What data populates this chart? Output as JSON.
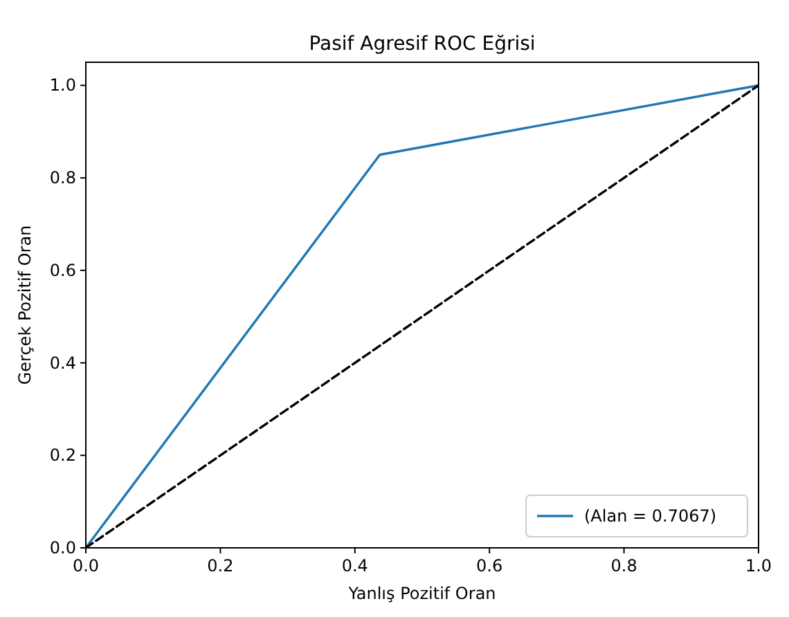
{
  "chart_data": {
    "type": "line",
    "title": "Pasif Agresif ROC Eğrisi",
    "xlabel": "Yanlış Pozitif Oran",
    "ylabel": "Gerçek Pozitif Oran",
    "xlim": [
      0,
      1
    ],
    "ylim": [
      0,
      1.05
    ],
    "xticks": [
      {
        "value": 0,
        "label": "0.0"
      },
      {
        "value": 0.2,
        "label": "0.2"
      },
      {
        "value": 0.4,
        "label": "0.4"
      },
      {
        "value": 0.6,
        "label": "0.6"
      },
      {
        "value": 0.8,
        "label": "0.8"
      },
      {
        "value": 1,
        "label": "1.0"
      }
    ],
    "yticks": [
      {
        "value": 0,
        "label": "0.0"
      },
      {
        "value": 0.2,
        "label": "0.2"
      },
      {
        "value": 0.4,
        "label": "0.4"
      },
      {
        "value": 0.6,
        "label": "0.6"
      },
      {
        "value": 0.8,
        "label": "0.8"
      },
      {
        "value": 1,
        "label": "1.0"
      }
    ],
    "series": [
      {
        "name": "(Alan = 0.7067)",
        "color": "#1f77b4",
        "x": [
          0,
          0.437,
          1
        ],
        "values": [
          0,
          0.85,
          1
        ]
      },
      {
        "color": "#000000",
        "x": [
          0,
          1
        ],
        "values": [
          0,
          1
        ],
        "line_style": "dashed"
      }
    ],
    "legend": "bottom right",
    "marker": "none",
    "grid": false
  }
}
